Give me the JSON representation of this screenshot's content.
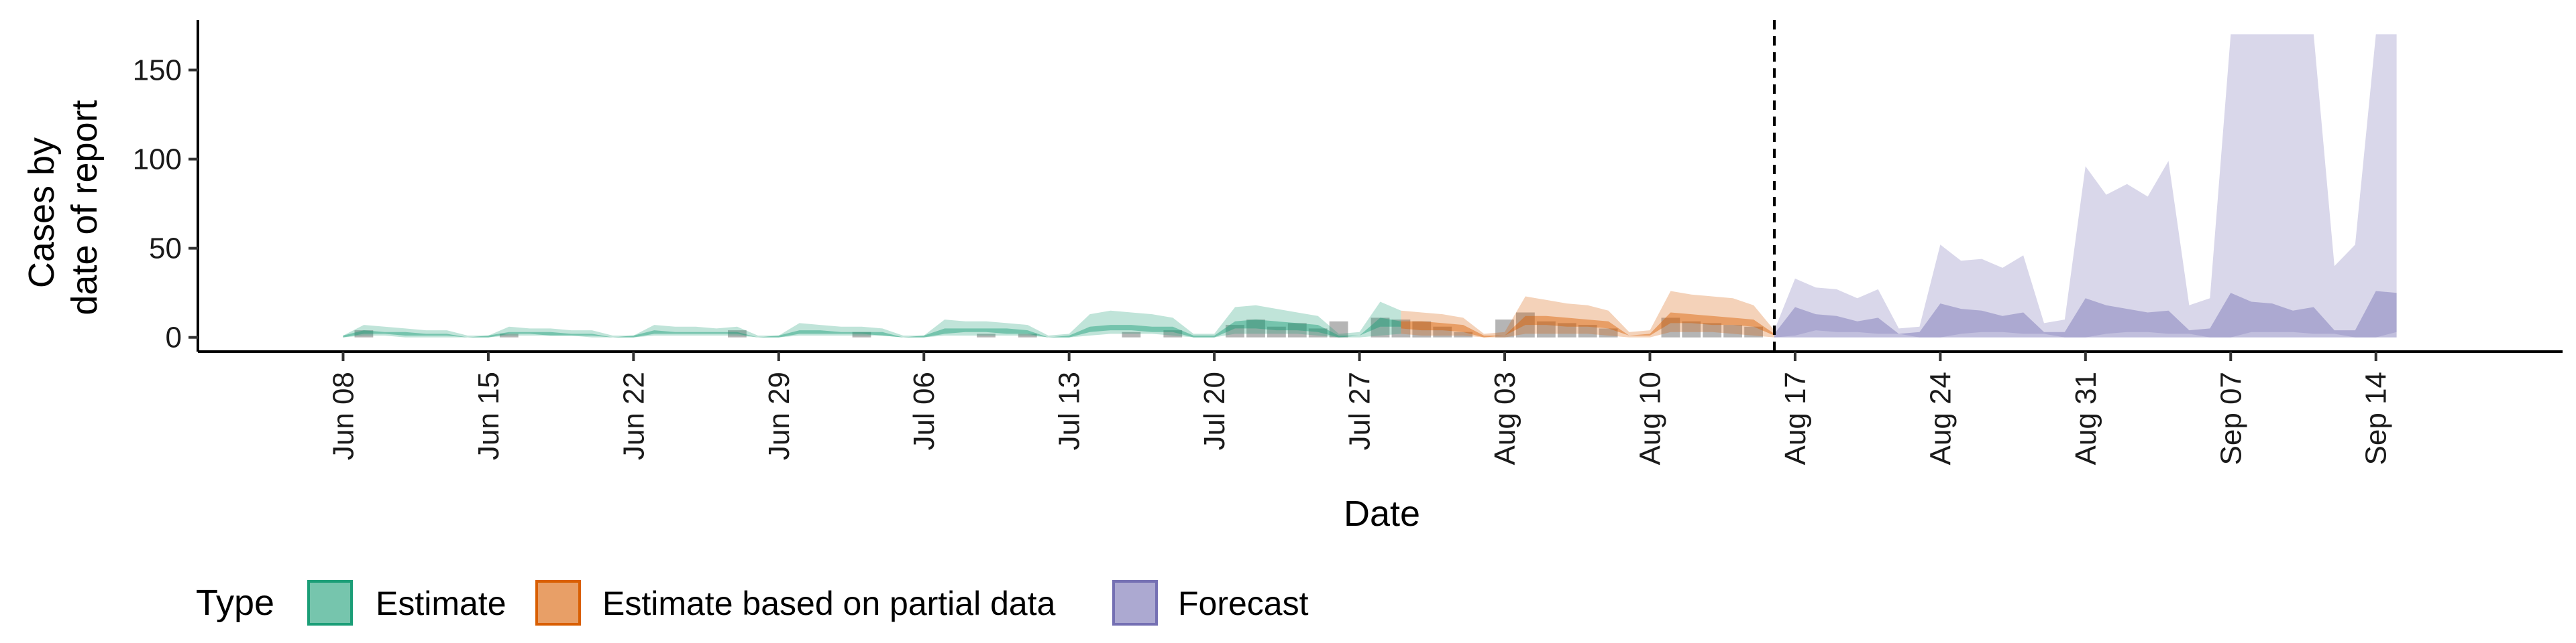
{
  "chart_data": {
    "type": "area",
    "xlabel": "Date",
    "ylabel_lines": [
      "Cases by",
      "date of report"
    ],
    "y_ticks": [
      0,
      50,
      100,
      150
    ],
    "ylim": [
      -8,
      178
    ],
    "xlim": [
      "2020-06-01",
      "2020-09-23"
    ],
    "x_ticks": [
      {
        "date": "2020-06-08",
        "label": "Jun 08"
      },
      {
        "date": "2020-06-15",
        "label": "Jun 15"
      },
      {
        "date": "2020-06-22",
        "label": "Jun 22"
      },
      {
        "date": "2020-06-29",
        "label": "Jun 29"
      },
      {
        "date": "2020-07-06",
        "label": "Jul 06"
      },
      {
        "date": "2020-07-13",
        "label": "Jul 13"
      },
      {
        "date": "2020-07-20",
        "label": "Jul 20"
      },
      {
        "date": "2020-07-27",
        "label": "Jul 27"
      },
      {
        "date": "2020-08-03",
        "label": "Aug 03"
      },
      {
        "date": "2020-08-10",
        "label": "Aug 10"
      },
      {
        "date": "2020-08-17",
        "label": "Aug 17"
      },
      {
        "date": "2020-08-24",
        "label": "Aug 24"
      },
      {
        "date": "2020-08-31",
        "label": "Aug 31"
      },
      {
        "date": "2020-09-07",
        "label": "Sep 07"
      },
      {
        "date": "2020-09-14",
        "label": "Sep 14"
      }
    ],
    "forecast_start": "2020-08-16",
    "legend": {
      "title": "Type",
      "position": "bottom",
      "entries": [
        {
          "label": "Estimate",
          "color": "#1b9e77"
        },
        {
          "label": "Estimate based on partial data",
          "color": "#d95f02"
        },
        {
          "label": "Forecast",
          "color": "#7570b3"
        }
      ]
    },
    "series": [
      {
        "name": "Estimate",
        "color": "#1b9e77",
        "dates": [
          "2020-06-08",
          "2020-06-09",
          "2020-06-10",
          "2020-06-11",
          "2020-06-12",
          "2020-06-13",
          "2020-06-14",
          "2020-06-15",
          "2020-06-16",
          "2020-06-17",
          "2020-06-18",
          "2020-06-19",
          "2020-06-20",
          "2020-06-21",
          "2020-06-22",
          "2020-06-23",
          "2020-06-24",
          "2020-06-25",
          "2020-06-26",
          "2020-06-27",
          "2020-06-28",
          "2020-06-29",
          "2020-06-30",
          "2020-07-01",
          "2020-07-02",
          "2020-07-03",
          "2020-07-04",
          "2020-07-05",
          "2020-07-06",
          "2020-07-07",
          "2020-07-08",
          "2020-07-09",
          "2020-07-10",
          "2020-07-11",
          "2020-07-12",
          "2020-07-13",
          "2020-07-14",
          "2020-07-15",
          "2020-07-16",
          "2020-07-17",
          "2020-07-18",
          "2020-07-19",
          "2020-07-20",
          "2020-07-21",
          "2020-07-22",
          "2020-07-23",
          "2020-07-24",
          "2020-07-25",
          "2020-07-26",
          "2020-07-27",
          "2020-07-28",
          "2020-07-29"
        ],
        "lower90": [
          0,
          1,
          1,
          0,
          0,
          0,
          0,
          0,
          1,
          1,
          1,
          1,
          0,
          0,
          0,
          1,
          1,
          1,
          1,
          1,
          0,
          0,
          1,
          1,
          1,
          1,
          1,
          0,
          0,
          1,
          1,
          1,
          1,
          1,
          0,
          0,
          1,
          2,
          2,
          2,
          1,
          0,
          0,
          2,
          2,
          2,
          2,
          1,
          0,
          0,
          1,
          2
        ],
        "upper90": [
          1,
          7,
          6,
          5,
          4,
          4,
          1,
          1,
          6,
          5,
          5,
          4,
          4,
          1,
          1,
          7,
          6,
          6,
          5,
          6,
          1,
          1,
          8,
          7,
          6,
          6,
          5,
          1,
          1,
          10,
          9,
          9,
          8,
          7,
          1,
          2,
          13,
          15,
          14,
          13,
          11,
          2,
          2,
          17,
          18,
          16,
          14,
          12,
          2,
          3,
          20,
          15
        ],
        "lower50": [
          0,
          2,
          2,
          1,
          1,
          1,
          0,
          0,
          2,
          2,
          1,
          1,
          1,
          0,
          0,
          2,
          2,
          2,
          2,
          2,
          0,
          0,
          2,
          2,
          2,
          2,
          1,
          0,
          0,
          2,
          3,
          3,
          2,
          2,
          0,
          0,
          3,
          4,
          4,
          3,
          3,
          0,
          0,
          5,
          5,
          4,
          4,
          3,
          0,
          1,
          6,
          6
        ],
        "upper50": [
          1,
          4,
          3,
          3,
          2,
          2,
          0,
          1,
          3,
          3,
          3,
          2,
          2,
          0,
          1,
          4,
          3,
          3,
          3,
          3,
          0,
          1,
          4,
          4,
          3,
          3,
          3,
          0,
          1,
          5,
          5,
          5,
          5,
          4,
          0,
          1,
          6,
          7,
          7,
          6,
          6,
          1,
          1,
          9,
          10,
          9,
          8,
          7,
          1,
          1,
          11,
          9
        ]
      },
      {
        "name": "Estimate based on partial data",
        "color": "#d95f02",
        "dates": [
          "2020-07-29",
          "2020-07-30",
          "2020-07-31",
          "2020-08-01",
          "2020-08-02",
          "2020-08-03",
          "2020-08-04",
          "2020-08-05",
          "2020-08-06",
          "2020-08-07",
          "2020-08-08",
          "2020-08-09",
          "2020-08-10",
          "2020-08-11",
          "2020-08-12",
          "2020-08-13",
          "2020-08-14",
          "2020-08-15",
          "2020-08-16"
        ],
        "lower90": [
          2,
          1,
          1,
          1,
          0,
          0,
          2,
          2,
          2,
          2,
          1,
          0,
          0,
          3,
          3,
          3,
          2,
          1,
          0
        ],
        "upper90": [
          15,
          14,
          13,
          11,
          2,
          3,
          23,
          21,
          19,
          18,
          15,
          3,
          4,
          26,
          24,
          23,
          22,
          18,
          4
        ],
        "lower50": [
          5,
          4,
          4,
          3,
          0,
          1,
          7,
          7,
          6,
          6,
          5,
          1,
          1,
          8,
          8,
          7,
          7,
          6,
          1
        ],
        "upper50": [
          9,
          9,
          8,
          7,
          1,
          1,
          12,
          12,
          11,
          10,
          9,
          1,
          2,
          14,
          13,
          12,
          11,
          10,
          2
        ]
      },
      {
        "name": "Forecast",
        "color": "#7570b3",
        "dates": [
          "2020-08-16",
          "2020-08-17",
          "2020-08-18",
          "2020-08-19",
          "2020-08-20",
          "2020-08-21",
          "2020-08-22",
          "2020-08-23",
          "2020-08-24",
          "2020-08-25",
          "2020-08-26",
          "2020-08-27",
          "2020-08-28",
          "2020-08-29",
          "2020-08-30",
          "2020-08-31",
          "2020-09-01",
          "2020-09-02",
          "2020-09-03",
          "2020-09-04",
          "2020-09-05",
          "2020-09-06",
          "2020-09-07",
          "2020-09-08",
          "2020-09-09",
          "2020-09-10",
          "2020-09-11",
          "2020-09-12",
          "2020-09-13",
          "2020-09-14",
          "2020-09-15"
        ],
        "lower90": [
          0,
          1,
          4,
          3,
          3,
          2,
          2,
          0,
          0,
          2,
          3,
          3,
          2,
          2,
          0,
          0,
          2,
          3,
          3,
          2,
          2,
          0,
          0,
          3,
          3,
          3,
          2,
          2,
          0,
          0,
          3
        ],
        "upper90": [
          4,
          33,
          28,
          27,
          22,
          27,
          5,
          6,
          52,
          43,
          44,
          39,
          46,
          8,
          10,
          96,
          80,
          86,
          79,
          99,
          18,
          22,
          170,
          170,
          170,
          170,
          170,
          40,
          52,
          170,
          170
        ],
        "lower50": [
          0,
          0,
          0,
          0,
          0,
          0,
          0,
          0,
          0,
          0,
          0,
          0,
          0,
          0,
          0,
          0,
          0,
          0,
          0,
          0,
          0,
          0,
          0,
          0,
          0,
          0,
          0,
          0,
          0,
          0,
          0
        ],
        "upper50": [
          2,
          17,
          13,
          12,
          9,
          11,
          2,
          3,
          19,
          16,
          15,
          12,
          14,
          3,
          3,
          22,
          18,
          16,
          14,
          15,
          4,
          5,
          25,
          20,
          19,
          15,
          17,
          4,
          4,
          26,
          25
        ]
      }
    ],
    "reported_cases": [
      {
        "date": "2020-06-09",
        "value": 4
      },
      {
        "date": "2020-06-16",
        "value": 2
      },
      {
        "date": "2020-06-27",
        "value": 4
      },
      {
        "date": "2020-07-03",
        "value": 3
      },
      {
        "date": "2020-07-09",
        "value": 2
      },
      {
        "date": "2020-07-11",
        "value": 2
      },
      {
        "date": "2020-07-16",
        "value": 3
      },
      {
        "date": "2020-07-18",
        "value": 4
      },
      {
        "date": "2020-07-21",
        "value": 7
      },
      {
        "date": "2020-07-22",
        "value": 10
      },
      {
        "date": "2020-07-23",
        "value": 6
      },
      {
        "date": "2020-07-24",
        "value": 8
      },
      {
        "date": "2020-07-25",
        "value": 5
      },
      {
        "date": "2020-07-26",
        "value": 9
      },
      {
        "date": "2020-07-28",
        "value": 11
      },
      {
        "date": "2020-07-29",
        "value": 10
      },
      {
        "date": "2020-07-30",
        "value": 9
      },
      {
        "date": "2020-07-31",
        "value": 6
      },
      {
        "date": "2020-08-01",
        "value": 3
      },
      {
        "date": "2020-08-03",
        "value": 10
      },
      {
        "date": "2020-08-04",
        "value": 14
      },
      {
        "date": "2020-08-05",
        "value": 9
      },
      {
        "date": "2020-08-06",
        "value": 8
      },
      {
        "date": "2020-08-07",
        "value": 7
      },
      {
        "date": "2020-08-08",
        "value": 5
      },
      {
        "date": "2020-08-11",
        "value": 11
      },
      {
        "date": "2020-08-12",
        "value": 9
      },
      {
        "date": "2020-08-13",
        "value": 8
      },
      {
        "date": "2020-08-14",
        "value": 7
      },
      {
        "date": "2020-08-15",
        "value": 6
      }
    ]
  }
}
